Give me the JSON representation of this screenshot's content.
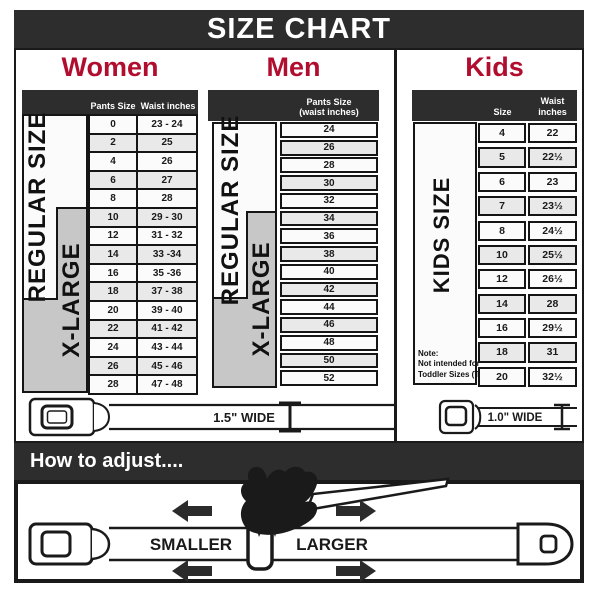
{
  "title": "SIZE CHART",
  "sections": {
    "women": {
      "heading": "Women",
      "regular_label": "REGULAR SIZE",
      "xlarge_label": "X-LARGE",
      "col_pants": "Pants Size",
      "col_waist": "Waist inches",
      "rows": [
        {
          "size": "0",
          "waist": "23 - 24"
        },
        {
          "size": "2",
          "waist": "25"
        },
        {
          "size": "4",
          "waist": "26"
        },
        {
          "size": "6",
          "waist": "27"
        },
        {
          "size": "8",
          "waist": "28"
        },
        {
          "size": "10",
          "waist": "29 - 30"
        },
        {
          "size": "12",
          "waist": "31 - 32"
        },
        {
          "size": "14",
          "waist": "33 -34"
        },
        {
          "size": "16",
          "waist": "35 -36"
        },
        {
          "size": "18",
          "waist": "37 - 38"
        },
        {
          "size": "20",
          "waist": "39 - 40"
        },
        {
          "size": "22",
          "waist": "41 - 42"
        },
        {
          "size": "24",
          "waist": "43 - 44"
        },
        {
          "size": "26",
          "waist": "45 - 46"
        },
        {
          "size": "28",
          "waist": "47 - 48"
        }
      ]
    },
    "men": {
      "heading": "Men",
      "regular_label": "REGULAR SIZE",
      "xlarge_label": "X-LARGE",
      "col_line1": "Pants Size",
      "col_line2": "(waist inches)",
      "rows": [
        "24",
        "26",
        "28",
        "30",
        "32",
        "34",
        "36",
        "38",
        "40",
        "42",
        "44",
        "46",
        "48",
        "50",
        "52"
      ]
    },
    "kids": {
      "heading": "Kids",
      "side_label": "KIDS SIZE",
      "col_size": "Size",
      "col_waist": "Waist inches",
      "note_lines": [
        "Note:",
        "Not intended for",
        "Toddler Sizes (T)"
      ],
      "rows": [
        {
          "size": "4",
          "waist": "22"
        },
        {
          "size": "5",
          "waist": "22½"
        },
        {
          "size": "6",
          "waist": "23"
        },
        {
          "size": "7",
          "waist": "23½"
        },
        {
          "size": "8",
          "waist": "24½"
        },
        {
          "size": "10",
          "waist": "25½"
        },
        {
          "size": "12",
          "waist": "26½"
        },
        {
          "size": "14",
          "waist": "28"
        },
        {
          "size": "16",
          "waist": "29½"
        },
        {
          "size": "18",
          "waist": "31"
        },
        {
          "size": "20",
          "waist": "32½"
        }
      ]
    }
  },
  "belts": {
    "adult_width_label": "1.5\" WIDE",
    "kids_width_label": "1.0\" WIDE"
  },
  "adjust": {
    "heading": "How to adjust....",
    "smaller": "SMALLER",
    "larger": "LARGER"
  },
  "colors": {
    "accent_red": "#b00d2f",
    "bar_dark": "#2d2d2d",
    "band_gray": "#c7c7c7",
    "border_black": "#1a1a1a"
  }
}
